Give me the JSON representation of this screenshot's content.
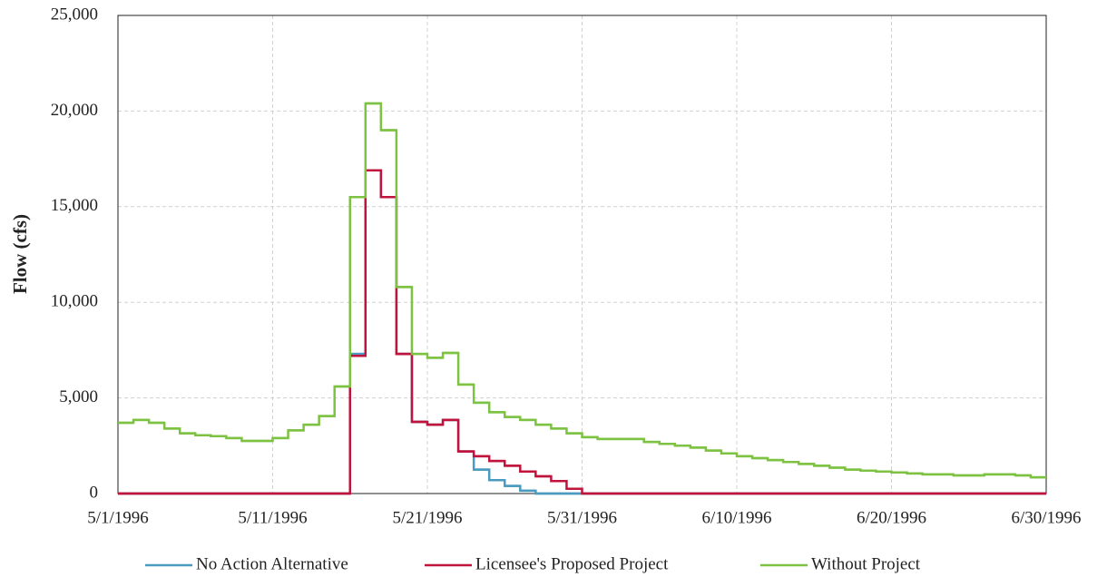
{
  "chart_data": {
    "type": "step-line",
    "y_label": "Flow (cfs)",
    "x": [
      "5/1/1996",
      "5/2/1996",
      "5/3/1996",
      "5/4/1996",
      "5/5/1996",
      "5/6/1996",
      "5/7/1996",
      "5/8/1996",
      "5/9/1996",
      "5/10/1996",
      "5/11/1996",
      "5/12/1996",
      "5/13/1996",
      "5/14/1996",
      "5/15/1996",
      "5/16/1996",
      "5/17/1996",
      "5/18/1996",
      "5/19/1996",
      "5/20/1996",
      "5/21/1996",
      "5/22/1996",
      "5/23/1996",
      "5/24/1996",
      "5/25/1996",
      "5/26/1996",
      "5/27/1996",
      "5/28/1996",
      "5/29/1996",
      "5/30/1996",
      "5/31/1996",
      "6/1/1996",
      "6/2/1996",
      "6/3/1996",
      "6/4/1996",
      "6/5/1996",
      "6/6/1996",
      "6/7/1996",
      "6/8/1996",
      "6/9/1996",
      "6/10/1996",
      "6/11/1996",
      "6/12/1996",
      "6/13/1996",
      "6/14/1996",
      "6/15/1996",
      "6/16/1996",
      "6/17/1996",
      "6/18/1996",
      "6/19/1996",
      "6/20/1996",
      "6/21/1996",
      "6/22/1996",
      "6/23/1996",
      "6/24/1996",
      "6/25/1996",
      "6/26/1996",
      "6/27/1996",
      "6/28/1996",
      "6/29/1996"
    ],
    "xlim": [
      "5/1/1996",
      "6/30/1996"
    ],
    "xticks": [
      "5/1/1996",
      "5/11/1996",
      "5/21/1996",
      "5/31/1996",
      "6/10/1996",
      "6/20/1996",
      "6/30/1996"
    ],
    "ylim": [
      0,
      25000
    ],
    "yticks": [
      0,
      {
        "value": 5000,
        "label": "5,000"
      },
      {
        "value": 10000,
        "label": "10,000"
      },
      {
        "value": 15000,
        "label": "15,000"
      },
      {
        "value": 20000,
        "label": "20,000"
      },
      {
        "value": 25000,
        "label": "25,000"
      }
    ],
    "grid": true,
    "legend": "bottom",
    "series": [
      {
        "name": "No Action Alternative",
        "color": "#4a9bbf",
        "values": [
          0,
          0,
          0,
          0,
          0,
          0,
          0,
          0,
          0,
          0,
          0,
          0,
          0,
          0,
          0,
          7300,
          16900,
          15500,
          7300,
          3750,
          3600,
          3850,
          2200,
          1250,
          700,
          400,
          150,
          0,
          0,
          0,
          0,
          0,
          0,
          0,
          0,
          0,
          0,
          0,
          0,
          0,
          0,
          0,
          0,
          0,
          0,
          0,
          0,
          0,
          0,
          0,
          0,
          0,
          0,
          0,
          0,
          0,
          0,
          0,
          0,
          0
        ]
      },
      {
        "name": "Licensee's Proposed Project",
        "color": "#c0143c",
        "values": [
          0,
          0,
          0,
          0,
          0,
          0,
          0,
          0,
          0,
          0,
          0,
          0,
          0,
          0,
          0,
          7200,
          16900,
          15500,
          7300,
          3750,
          3600,
          3850,
          2200,
          1950,
          1700,
          1450,
          1150,
          900,
          650,
          250,
          0,
          0,
          0,
          0,
          0,
          0,
          0,
          0,
          0,
          0,
          0,
          0,
          0,
          0,
          0,
          0,
          0,
          0,
          0,
          0,
          0,
          0,
          0,
          0,
          0,
          0,
          0,
          0,
          0,
          0
        ]
      },
      {
        "name": "Without Project",
        "color": "#7dc242",
        "values": [
          3700,
          3850,
          3700,
          3400,
          3150,
          3050,
          3000,
          2900,
          2750,
          2750,
          2900,
          3300,
          3600,
          4050,
          5600,
          15500,
          20400,
          19000,
          10800,
          7300,
          7100,
          7350,
          5700,
          4750,
          4250,
          4000,
          3850,
          3600,
          3400,
          3150,
          2950,
          2850,
          2850,
          2850,
          2700,
          2600,
          2500,
          2400,
          2250,
          2100,
          1950,
          1850,
          1750,
          1650,
          1550,
          1450,
          1350,
          1250,
          1200,
          1150,
          1100,
          1050,
          1000,
          1000,
          950,
          950,
          1000,
          1000,
          950,
          850
        ]
      }
    ]
  }
}
